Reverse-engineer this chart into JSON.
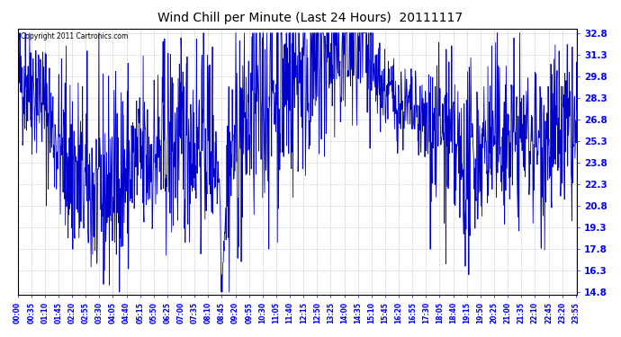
{
  "title": "Wind Chill per Minute (Last 24 Hours)  20111117",
  "copyright": "Copyright 2011 Cartronics.com",
  "line_color": "#0000CC",
  "bg_color": "#FFFFFF",
  "plot_bg_color": "#FFFFFF",
  "grid_color": "#999999",
  "yticks": [
    14.8,
    16.3,
    17.8,
    19.3,
    20.8,
    22.3,
    23.8,
    25.3,
    26.8,
    28.3,
    29.8,
    31.3,
    32.8
  ],
  "ymin": 14.8,
  "ymax": 32.8,
  "xtick_labels": [
    "00:00",
    "00:35",
    "01:10",
    "01:45",
    "02:20",
    "02:55",
    "03:30",
    "04:05",
    "04:40",
    "05:15",
    "05:50",
    "06:25",
    "07:00",
    "07:35",
    "08:10",
    "08:45",
    "09:20",
    "09:55",
    "10:30",
    "11:05",
    "11:40",
    "12:15",
    "12:50",
    "13:25",
    "14:00",
    "14:35",
    "15:10",
    "15:45",
    "16:20",
    "16:55",
    "17:30",
    "18:05",
    "18:40",
    "19:15",
    "19:50",
    "20:25",
    "21:00",
    "21:35",
    "22:10",
    "22:45",
    "23:20",
    "23:55"
  ],
  "seed": 42
}
